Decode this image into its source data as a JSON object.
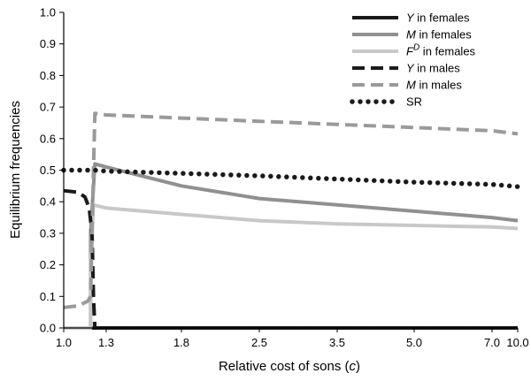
{
  "chart_data": {
    "type": "line",
    "xlabel": "Relative cost of sons (c)",
    "xlabel_parts": {
      "pre": "Relative cost of sons (",
      "var": "c",
      "post": ")"
    },
    "ylabel": "Equilibrium frequencies",
    "x_tick_labels": [
      "1.0",
      "1.3",
      "1.8",
      "2.5",
      "3.5",
      "5.0",
      "7.0",
      "10.0"
    ],
    "y_ticks": [
      0.0,
      0.1,
      0.2,
      0.3,
      0.4,
      0.5,
      0.6,
      0.7,
      0.8,
      0.9,
      1.0
    ],
    "y_tick_labels": [
      "0.0",
      "0.1",
      "0.2",
      "0.3",
      "0.4",
      "0.5",
      "0.6",
      "0.7",
      "0.8",
      "0.9",
      "1.0"
    ],
    "ylim": [
      0,
      1
    ],
    "grid": false,
    "legend_placement": "top-right",
    "x_scale": "categorical-ordinal (labels are values of c)",
    "series": [
      {
        "name": "Y in females",
        "legend": {
          "var": "Y",
          "sup": "",
          "rest": " in females"
        },
        "color": "#1a1a1a",
        "style": "solid",
        "points": [
          [
            1.0,
            0.0
          ],
          [
            1.2,
            0.0
          ],
          [
            1.22,
            0.0
          ],
          [
            1.3,
            0.0
          ],
          [
            1.8,
            0.0
          ],
          [
            2.5,
            0.0
          ],
          [
            3.5,
            0.0
          ],
          [
            5.0,
            0.0
          ],
          [
            7.0,
            0.0
          ],
          [
            10.0,
            0.0
          ]
        ]
      },
      {
        "name": "M in females",
        "legend": {
          "var": "M",
          "sup": "",
          "rest": " in females"
        },
        "color": "#909090",
        "style": "solid",
        "points": [
          [
            1.0,
            0.0
          ],
          [
            1.19,
            0.0
          ],
          [
            1.19,
            0.3
          ],
          [
            1.22,
            0.52
          ],
          [
            1.3,
            0.51
          ],
          [
            1.8,
            0.45
          ],
          [
            2.5,
            0.41
          ],
          [
            3.5,
            0.39
          ],
          [
            5.0,
            0.37
          ],
          [
            7.0,
            0.35
          ],
          [
            10.0,
            0.34
          ]
        ]
      },
      {
        "name": "F^D in females",
        "legend": {
          "var": "F",
          "sup": "D",
          "rest": " in females"
        },
        "color": "#c8c8c8",
        "style": "solid",
        "points": [
          [
            1.0,
            0.0
          ],
          [
            1.19,
            0.0
          ],
          [
            1.19,
            0.2
          ],
          [
            1.21,
            0.39
          ],
          [
            1.3,
            0.38
          ],
          [
            1.8,
            0.36
          ],
          [
            2.5,
            0.34
          ],
          [
            3.5,
            0.33
          ],
          [
            5.0,
            0.325
          ],
          [
            7.0,
            0.32
          ],
          [
            10.0,
            0.315
          ]
        ]
      },
      {
        "name": "Y in males",
        "legend": {
          "var": "Y",
          "sup": "",
          "rest": " in males"
        },
        "color": "#1a1a1a",
        "style": "dashed",
        "points": [
          [
            1.0,
            0.435
          ],
          [
            1.1,
            0.43
          ],
          [
            1.15,
            0.415
          ],
          [
            1.18,
            0.38
          ],
          [
            1.2,
            0.3
          ],
          [
            1.21,
            0.1
          ],
          [
            1.22,
            0.0
          ],
          [
            1.3,
            0.0
          ],
          [
            1.8,
            0.0
          ],
          [
            2.5,
            0.0
          ],
          [
            3.5,
            0.0
          ],
          [
            5.0,
            0.0
          ],
          [
            7.0,
            0.0
          ],
          [
            10.0,
            0.0
          ]
        ]
      },
      {
        "name": "M in males",
        "legend": {
          "var": "M",
          "sup": "",
          "rest": " in males"
        },
        "color": "#9a9a9a",
        "style": "dashed",
        "points": [
          [
            1.0,
            0.065
          ],
          [
            1.1,
            0.07
          ],
          [
            1.17,
            0.085
          ],
          [
            1.19,
            0.1
          ],
          [
            1.2,
            0.3
          ],
          [
            1.21,
            0.5
          ],
          [
            1.22,
            0.68
          ],
          [
            1.3,
            0.675
          ],
          [
            1.8,
            0.665
          ],
          [
            2.5,
            0.655
          ],
          [
            3.5,
            0.645
          ],
          [
            5.0,
            0.635
          ],
          [
            7.0,
            0.625
          ],
          [
            10.0,
            0.615
          ]
        ]
      },
      {
        "name": "SR",
        "legend": {
          "var": "",
          "sup": "",
          "rest": "SR"
        },
        "color": "#1a1a1a",
        "style": "dotted",
        "points": [
          [
            1.0,
            0.5
          ],
          [
            1.22,
            0.5
          ],
          [
            1.3,
            0.497
          ],
          [
            1.8,
            0.49
          ],
          [
            2.5,
            0.482
          ],
          [
            3.5,
            0.472
          ],
          [
            5.0,
            0.462
          ],
          [
            7.0,
            0.455
          ],
          [
            10.0,
            0.448
          ]
        ]
      }
    ]
  }
}
